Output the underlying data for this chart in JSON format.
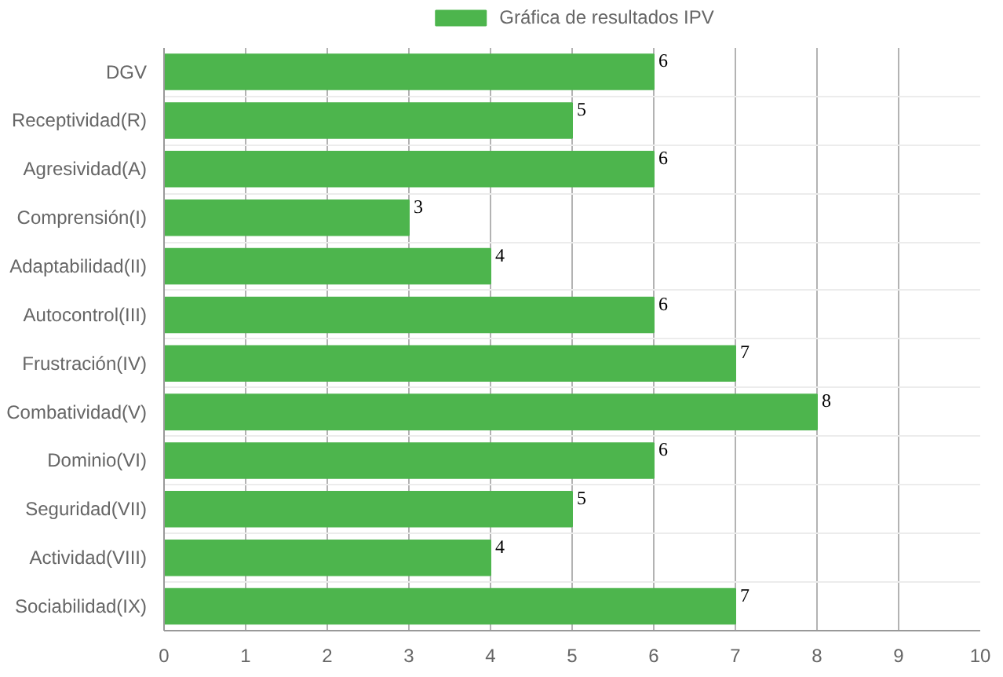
{
  "chart_data": {
    "type": "bar",
    "orientation": "horizontal",
    "categories": [
      "DGV",
      "Receptividad(R)",
      "Agresividad(A)",
      "Comprensión(I)",
      "Adaptabilidad(II)",
      "Autocontrol(III)",
      "Frustración(IV)",
      "Combatividad(V)",
      "Dominio(VI)",
      "Seguridad(VII)",
      "Actividad(VIII)",
      "Sociabilidad(IX)"
    ],
    "series": [
      {
        "name": "Gráfica de resultados IPV",
        "color": "#4db54d",
        "values": [
          6,
          5,
          6,
          3,
          4,
          6,
          7,
          8,
          6,
          5,
          4,
          7
        ]
      }
    ],
    "xlim": [
      0,
      10
    ],
    "xticks": [
      0,
      1,
      2,
      3,
      4,
      5,
      6,
      7,
      8,
      9,
      10
    ],
    "grid": true,
    "legend": "top",
    "data_labels": true
  }
}
